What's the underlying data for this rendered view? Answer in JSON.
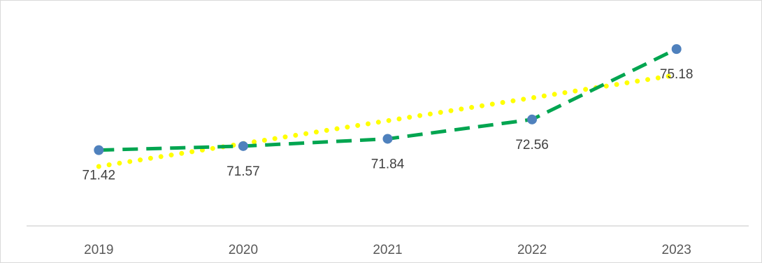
{
  "chart_data": {
    "type": "line",
    "title": "",
    "xlabel": "",
    "ylabel": "",
    "categories": [
      "2019",
      "2020",
      "2021",
      "2022",
      "2023"
    ],
    "series": [
      {
        "values": [
          71.42,
          71.57,
          71.84,
          72.56,
          75.18
        ],
        "data_labels": [
          "71.42",
          "71.57",
          "71.84",
          "72.56",
          "75.18"
        ],
        "line_color": "#00a550",
        "line_style": "dashed",
        "marker_color": "#4f81bd"
      }
    ],
    "trendline": {
      "type": "linear",
      "color": "#ffff00",
      "line_style": "dotted"
    },
    "ylim": [
      68.6,
      76.25
    ],
    "grid": false,
    "legend": "none"
  }
}
